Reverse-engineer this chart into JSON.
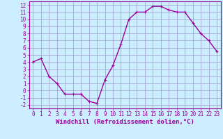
{
  "x": [
    0,
    1,
    2,
    3,
    4,
    5,
    6,
    7,
    8,
    9,
    10,
    11,
    12,
    13,
    14,
    15,
    16,
    17,
    18,
    19,
    20,
    21,
    22,
    23
  ],
  "y": [
    4.0,
    4.5,
    2.0,
    1.0,
    -0.5,
    -0.5,
    -0.5,
    -1.5,
    -1.8,
    1.5,
    3.5,
    6.5,
    10.0,
    11.0,
    11.0,
    11.8,
    11.8,
    11.3,
    11.0,
    11.0,
    9.5,
    8.0,
    7.0,
    5.5
  ],
  "line_color": "#990099",
  "marker": "+",
  "marker_size": 3,
  "bg_color": "#cceeff",
  "grid_color": "#9999cc",
  "xlabel": "Windchill (Refroidissement éolien,°C)",
  "xlim": [
    -0.5,
    23.5
  ],
  "ylim": [
    -2.5,
    12.5
  ],
  "yticks": [
    -2,
    -1,
    0,
    1,
    2,
    3,
    4,
    5,
    6,
    7,
    8,
    9,
    10,
    11,
    12
  ],
  "xticks": [
    0,
    1,
    2,
    3,
    4,
    5,
    6,
    7,
    8,
    9,
    10,
    11,
    12,
    13,
    14,
    15,
    16,
    17,
    18,
    19,
    20,
    21,
    22,
    23
  ],
  "tick_fontsize": 5.5,
  "xlabel_fontsize": 6.5,
  "line_width": 1.0,
  "markeredgewidth": 0.8
}
